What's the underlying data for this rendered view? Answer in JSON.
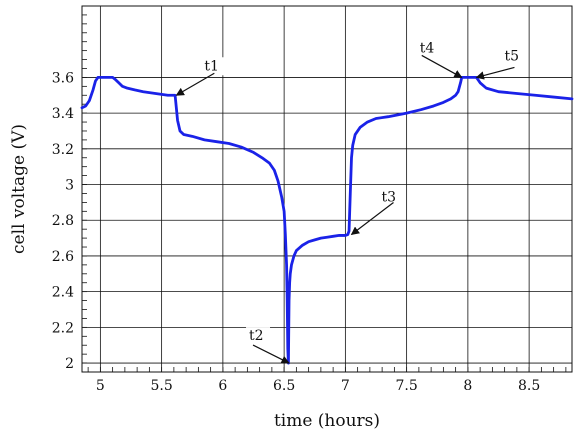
{
  "chart_data": {
    "type": "line",
    "title": "",
    "xlabel": "time (hours)",
    "ylabel": "cell voltage (V)",
    "xlim": [
      4.85,
      8.85
    ],
    "ylim": [
      1.95,
      4.0
    ],
    "grid": true,
    "x_ticks": [
      5,
      5.5,
      6,
      6.5,
      7,
      7.5,
      8,
      8.5
    ],
    "x_tick_labels": [
      "5",
      "5.5",
      "6",
      "6.5",
      "7",
      "7.5",
      "8",
      "8.5"
    ],
    "y_ticks": [
      2.0,
      2.2,
      2.4,
      2.6,
      2.8,
      3.0,
      3.2,
      3.4,
      3.6
    ],
    "y_tick_labels": [
      "2",
      "2.2",
      "2.4",
      "2.6",
      "2.8",
      "3",
      "3.2",
      "3.4",
      "3.6"
    ],
    "series": [
      {
        "color": "#1a22e8",
        "x": [
          4.85,
          4.88,
          4.91,
          4.94,
          4.96,
          4.98,
          5.0,
          5.05,
          5.1,
          5.12,
          5.15,
          5.18,
          5.22,
          5.28,
          5.35,
          5.45,
          5.55,
          5.61,
          5.62,
          5.63,
          5.65,
          5.68,
          5.75,
          5.85,
          5.95,
          6.05,
          6.15,
          6.25,
          6.32,
          6.38,
          6.42,
          6.45,
          6.48,
          6.5,
          6.51,
          6.52,
          6.525,
          6.53,
          6.535,
          6.54,
          6.545,
          6.55,
          6.56,
          6.58,
          6.6,
          6.65,
          6.7,
          6.75,
          6.8,
          6.85,
          6.9,
          6.95,
          7.0,
          7.02,
          7.03,
          7.04,
          7.05,
          7.06,
          7.08,
          7.12,
          7.18,
          7.25,
          7.35,
          7.5,
          7.62,
          7.72,
          7.8,
          7.86,
          7.9,
          7.92,
          7.94,
          7.95,
          7.97,
          8.0,
          8.05,
          8.07,
          8.1,
          8.15,
          8.25,
          8.4,
          8.55,
          8.7,
          8.85
        ],
        "y": [
          3.43,
          3.44,
          3.47,
          3.53,
          3.58,
          3.6,
          3.6,
          3.6,
          3.6,
          3.59,
          3.57,
          3.55,
          3.54,
          3.53,
          3.52,
          3.51,
          3.5,
          3.5,
          3.43,
          3.36,
          3.3,
          3.28,
          3.27,
          3.25,
          3.24,
          3.23,
          3.21,
          3.18,
          3.15,
          3.12,
          3.08,
          3.02,
          2.93,
          2.85,
          2.72,
          2.55,
          2.36,
          2.08,
          2.0,
          2.35,
          2.45,
          2.5,
          2.55,
          2.6,
          2.63,
          2.66,
          2.68,
          2.69,
          2.7,
          2.705,
          2.71,
          2.715,
          2.715,
          2.72,
          2.74,
          2.95,
          3.15,
          3.22,
          3.28,
          3.32,
          3.35,
          3.37,
          3.38,
          3.4,
          3.42,
          3.44,
          3.46,
          3.48,
          3.5,
          3.52,
          3.57,
          3.6,
          3.6,
          3.6,
          3.6,
          3.6,
          3.57,
          3.54,
          3.52,
          3.51,
          3.5,
          3.49,
          3.48
        ]
      }
    ],
    "annotations": [
      {
        "label": "t1",
        "x": 5.62,
        "y": 3.5
      },
      {
        "label": "t2",
        "x": 6.54,
        "y": 2.0
      },
      {
        "label": "t3",
        "x": 7.05,
        "y": 2.72
      },
      {
        "label": "t4",
        "x": 7.95,
        "y": 3.6
      },
      {
        "label": "t5",
        "x": 8.07,
        "y": 3.6
      }
    ]
  }
}
